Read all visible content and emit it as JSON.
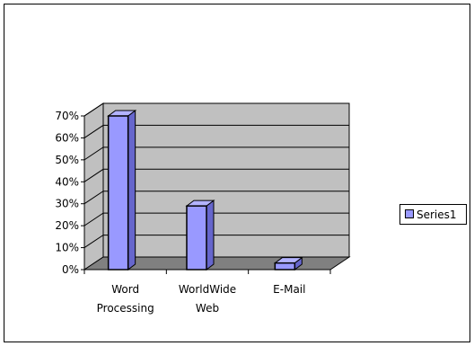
{
  "chart_data": {
    "type": "bar",
    "categories": [
      "Word Processing",
      "World Wide Web",
      "E-Mail"
    ],
    "category_label_lines": [
      [
        "Word",
        "Processing"
      ],
      [
        "WorldWide",
        "Web"
      ],
      [
        "E-Mail"
      ]
    ],
    "series": [
      {
        "name": "Series1",
        "values": [
          70,
          29,
          3
        ]
      }
    ],
    "y_tick_labels": [
      "0%",
      "10%",
      "20%",
      "30%",
      "40%",
      "50%",
      "60%",
      "70%"
    ],
    "ylim": [
      0,
      70
    ],
    "grid": true,
    "legend_position": "right",
    "style": "3d-column",
    "colors": {
      "bar_front": "#9999ff",
      "bar_side": "#6666cc",
      "bar_top": "#b3b3ff",
      "bar_stroke": "#000000",
      "wall": "#c0c0c0",
      "floor": "#808080",
      "frame": "#000000"
    }
  }
}
